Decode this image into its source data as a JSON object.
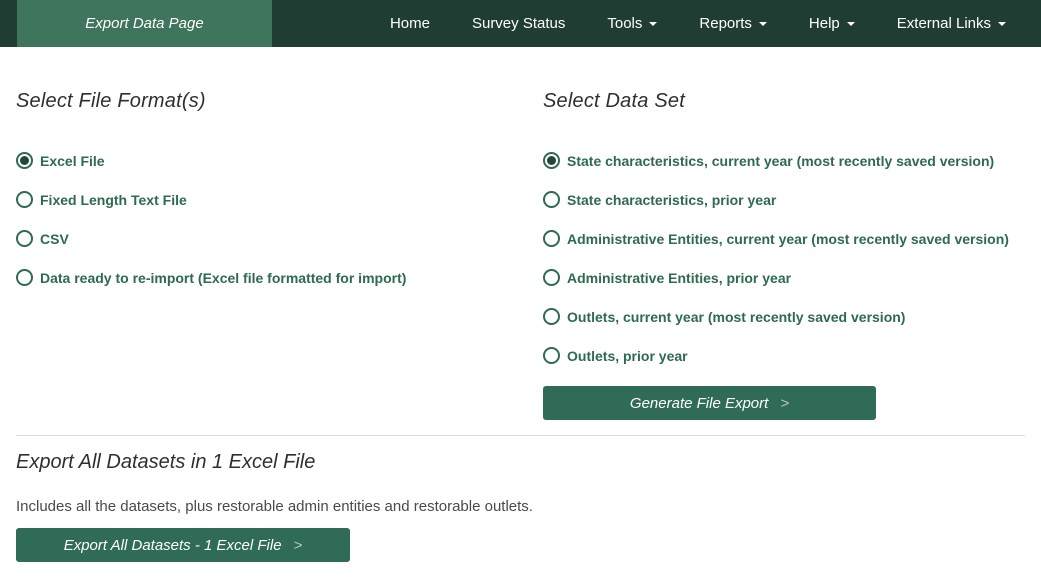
{
  "navbar": {
    "brand": "Export Data Page",
    "items": [
      {
        "label": "Home",
        "dropdown": false
      },
      {
        "label": "Survey Status",
        "dropdown": false
      },
      {
        "label": "Tools",
        "dropdown": true
      },
      {
        "label": "Reports",
        "dropdown": true
      },
      {
        "label": "Help",
        "dropdown": true
      },
      {
        "label": "External Links",
        "dropdown": true
      }
    ]
  },
  "file_format_section": {
    "heading": "Select File Format(s)",
    "options": [
      {
        "label": "Excel File",
        "selected": true
      },
      {
        "label": "Fixed Length Text File",
        "selected": false
      },
      {
        "label": "CSV",
        "selected": false
      },
      {
        "label": "Data ready to re-import (Excel file formatted for import)",
        "selected": false
      }
    ]
  },
  "data_set_section": {
    "heading": "Select Data Set",
    "options": [
      {
        "label": "State characteristics, current year (most recently saved version)",
        "selected": true
      },
      {
        "label": "State characteristics, prior year",
        "selected": false
      },
      {
        "label": "Administrative Entities, current year (most recently saved version)",
        "selected": false
      },
      {
        "label": "Administrative Entities, prior year",
        "selected": false
      },
      {
        "label": "Outlets, current year (most recently saved version)",
        "selected": false
      },
      {
        "label": "Outlets, prior year",
        "selected": false
      }
    ],
    "generate_button": {
      "label": "Generate File Export",
      "chevron": ">"
    }
  },
  "export_all_section": {
    "heading": "Export All Datasets in 1 Excel File",
    "description": "Includes all the datasets, plus restorable admin entities and restorable outlets.",
    "button": {
      "label": "Export All Datasets - 1 Excel File",
      "chevron": ">"
    }
  },
  "colors": {
    "navbar_bg": "#1f3d33",
    "brand_tab_bg": "#3f755c",
    "button_bg": "#2f6b57",
    "radio_green": "#2e6b52",
    "label_green": "#2d6a4f",
    "chevron_pale": "#b8cda9"
  }
}
